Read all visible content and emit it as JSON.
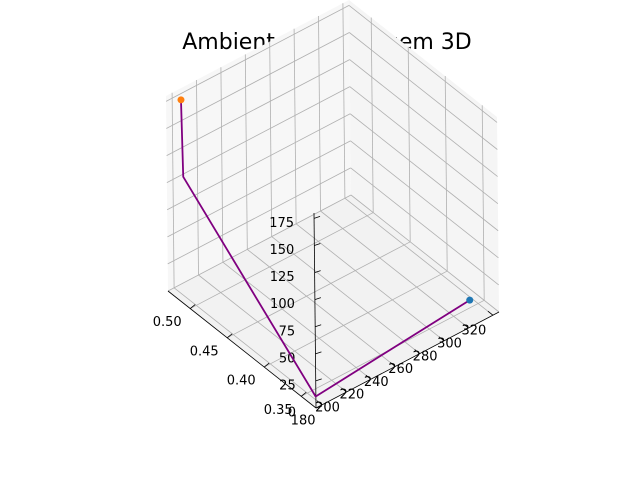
{
  "chart_data": {
    "type": "line3d",
    "title": "Ambiente de Plotagem 3D",
    "xlabel": "",
    "ylabel": "",
    "zlabel": "",
    "x_ticks": [
      "180",
      "200",
      "220",
      "240",
      "260",
      "280",
      "300",
      "320"
    ],
    "y_ticks": [
      "0.35",
      "0.40",
      "0.45",
      "0.50"
    ],
    "z_ticks": [
      "0",
      "25",
      "50",
      "75",
      "100",
      "125",
      "150",
      "175"
    ],
    "grid": true,
    "line": {
      "color": "#800080",
      "points": [
        {
          "x": 318,
          "y": 0.358,
          "z": 0
        },
        {
          "x": 182,
          "y": 0.342,
          "z": 0
        },
        {
          "x": 180,
          "y": 0.516,
          "z": 110
        },
        {
          "x": 180,
          "y": 0.518,
          "z": 180
        }
      ]
    },
    "markers": [
      {
        "x": 318,
        "y": 0.358,
        "z": 0,
        "color": "#1f77b4"
      },
      {
        "x": 180,
        "y": 0.518,
        "z": 180,
        "color": "#ff7f0e"
      }
    ]
  }
}
